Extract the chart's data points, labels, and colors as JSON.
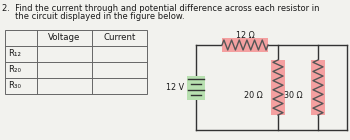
{
  "title_line1": "2.  Find the current through and potential difference across each resistor in",
  "title_line2": "     the circuit displayed in the figure below.",
  "table_rows": [
    "R₁₂",
    "R₂₀",
    "R₃₀"
  ],
  "resistors": [
    {
      "label": "12 Ω",
      "color": "#f4a0a0",
      "orientation": "horizontal"
    },
    {
      "label": "20 Ω",
      "color": "#f4a0a0",
      "orientation": "vertical"
    },
    {
      "label": "30 Ω",
      "color": "#f4a0a0",
      "orientation": "vertical"
    }
  ],
  "battery_label": "12 V",
  "battery_color": "#b8e0b0",
  "bg_color": "#f2f2ee",
  "text_color": "#1a1a1a",
  "wire_color": "#333333",
  "table_line_color": "#666666",
  "resistor_line_color": "#555555",
  "title_fontsize": 6.0,
  "table_fontsize": 6.2,
  "label_fontsize": 5.8
}
